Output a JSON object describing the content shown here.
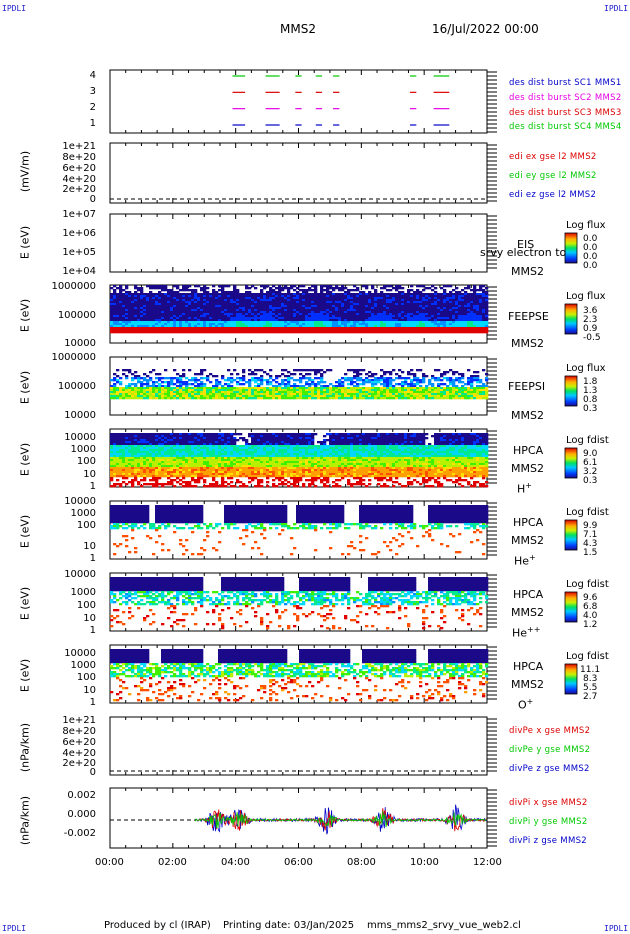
{
  "header": {
    "corner_left": "IPDLI",
    "corner_right": "IPDLI",
    "spacecraft": "MMS2",
    "date_time": "16/Jul/2022 00:00"
  },
  "footer": {
    "produced_by": "Produced by cl (IRAP)",
    "printing_date": "Printing date: 03/Jan/2025",
    "filename": "mms_mms2_srvy_vue_web2.cl",
    "corner_left": "IPDLI",
    "corner_right": "IPDLI"
  },
  "x_axis": {
    "ticks": [
      "00:00",
      "02:00",
      "04:00",
      "06:00",
      "08:00",
      "10:00",
      "12:00"
    ],
    "range_hours": [
      0,
      12
    ]
  },
  "colors": {
    "mms1": "#0000c8",
    "mms2": "#e600e6",
    "mms3": "#dc0000",
    "mms4": "#00c800",
    "x_comp": "#dc0000",
    "y_comp": "#00c800",
    "z_comp": "#0000c8"
  },
  "panels": {
    "burst": {
      "yticks": [
        "1",
        "2",
        "3",
        "4"
      ],
      "legend": [
        "des dist burst SC1 MMS1",
        "des dist burst SC2 MMS2",
        "des dist burst SC3 MMS3",
        "des dist burst SC4 MMS4"
      ]
    },
    "edi": {
      "ylabel": "(mV/m)",
      "yticks": [
        "0",
        "2e+20",
        "4e+20",
        "6e+20",
        "8e+20",
        "1e+21"
      ],
      "legend": [
        "edi ex gse l2 MMS2",
        "edi ey gse l2 MMS2",
        "edi ez gse l2 MMS2"
      ]
    },
    "eis": {
      "ylabel": "E (eV)",
      "yticks": [
        "1e+04",
        "1e+05",
        "1e+06",
        "1e+07"
      ],
      "label1": "EIS",
      "label2": "MMS2",
      "overlay": "srvy electron to",
      "cb_title": "Log flux",
      "cb_ticks": [
        "0.0",
        "0.0",
        "0.0",
        "0.0"
      ]
    },
    "feepse": {
      "ylabel": "E (eV)",
      "yticks": [
        "10000",
        "100000",
        "1000000"
      ],
      "label1": "FEEPSE",
      "label2": "MMS2",
      "cb_title": "Log flux",
      "cb_ticks": [
        "3.6",
        "2.3",
        "0.9",
        "-0.5"
      ]
    },
    "feepsi": {
      "ylabel": "E (eV)",
      "yticks": [
        "10000",
        "100000",
        "1000000"
      ],
      "label1": "FEEPSI",
      "label2": "MMS2",
      "cb_title": "Log flux",
      "cb_ticks": [
        "1.8",
        "1.3",
        "0.8",
        "0.3"
      ]
    },
    "hpca_h": {
      "ylabel": "E (eV)",
      "yticks": [
        "1",
        "10",
        "100",
        "1000",
        "10000"
      ],
      "label1": "HPCA",
      "label2": "MMS2",
      "species": "H",
      "charge": "+",
      "cb_title": "Log fdist",
      "cb_ticks": [
        "9.0",
        "6.1",
        "3.2",
        "0.3"
      ]
    },
    "hpca_he": {
      "ylabel": "E (eV)",
      "yticks": [
        "1",
        "10",
        "100",
        "1000",
        "10000"
      ],
      "label1": "HPCA",
      "label2": "MMS2",
      "species": "He",
      "charge": "+",
      "cb_title": "Log fdist",
      "cb_ticks": [
        "9.9",
        "7.1",
        "4.3",
        "1.5"
      ]
    },
    "hpca_hepp": {
      "ylabel": "E (eV)",
      "yticks": [
        "1",
        "10",
        "100",
        "1000",
        "10000"
      ],
      "label1": "HPCA",
      "label2": "MMS2",
      "species": "He",
      "charge": "++",
      "cb_title": "Log fdist",
      "cb_ticks": [
        "9.6",
        "6.8",
        "4.0",
        "1.2"
      ]
    },
    "hpca_o": {
      "ylabel": "E (eV)",
      "yticks": [
        "1",
        "10",
        "100",
        "1000",
        "10000"
      ],
      "label1": "HPCA",
      "label2": "MMS2",
      "species": "O",
      "charge": "+",
      "cb_title": "Log fdist",
      "cb_ticks": [
        "11.1",
        "8.3",
        "5.5",
        "2.7"
      ]
    },
    "divpe": {
      "ylabel": "(nPa/km)",
      "yticks": [
        "0",
        "2e+20",
        "4e+20",
        "6e+20",
        "8e+20",
        "1e+21"
      ],
      "legend": [
        "divPe x gse MMS2",
        "divPe y gse MMS2",
        "divPe z gse MMS2"
      ]
    },
    "divpi": {
      "ylabel": "(nPa/km)",
      "yticks": [
        "-0.002",
        "0.000",
        "0.002"
      ],
      "legend": [
        "divPi x gse MMS2",
        "divPi y gse MMS2",
        "divPi z gse MMS2"
      ]
    }
  },
  "chart_data": {
    "type": "heatmap",
    "title": "MMS2 16/Jul/2022 00:00",
    "x_range_hours": [
      0,
      12
    ],
    "burst_intervals_hours": [
      [
        3.9,
        4.3
      ],
      [
        4.95,
        5.4
      ],
      [
        5.9,
        6.1
      ],
      [
        6.55,
        6.75
      ],
      [
        7.1,
        7.3
      ],
      [
        9.55,
        9.75
      ],
      [
        10.3,
        10.8
      ]
    ],
    "divPi": {
      "ylim": [
        -0.003,
        0.003
      ],
      "data_start_hour": 2.7,
      "peak_hours": [
        3.4,
        4.1,
        6.9,
        8.7,
        11.0
      ]
    }
  }
}
